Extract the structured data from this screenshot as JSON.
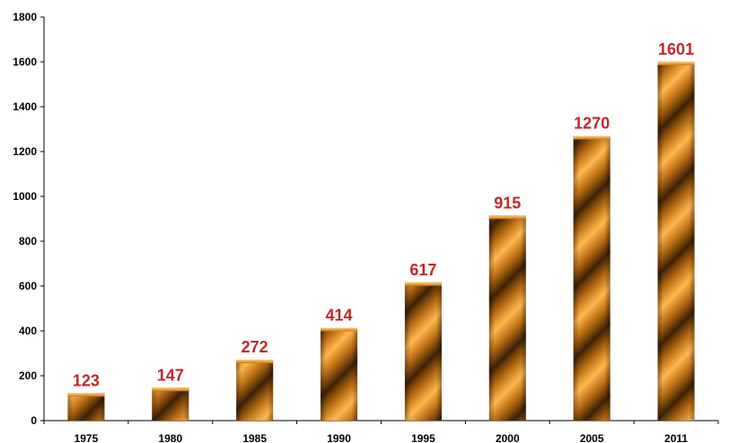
{
  "chart_data": {
    "type": "bar",
    "categories": [
      "1975",
      "1980",
      "1985",
      "1990",
      "1995",
      "2000",
      "2005",
      "2011"
    ],
    "values": [
      123,
      147,
      272,
      414,
      617,
      915,
      1270,
      1601
    ],
    "data_labels": [
      "123",
      "147",
      "272",
      "414",
      "617",
      "915",
      "1270",
      "1601"
    ],
    "y_ticks": [
      "0",
      "200",
      "400",
      "600",
      "800",
      "1000",
      "1200",
      "1400",
      "1600",
      "1800"
    ],
    "ylim": [
      0,
      1800
    ],
    "title": "",
    "xlabel": "",
    "ylabel": "",
    "grid": false,
    "legend": "none",
    "colors": {
      "bar_light": "#ffb84d",
      "bar_mid": "#e08a1e",
      "bar_dark": "#3d2206",
      "label": "#c0262c",
      "axis": "#000000"
    }
  }
}
